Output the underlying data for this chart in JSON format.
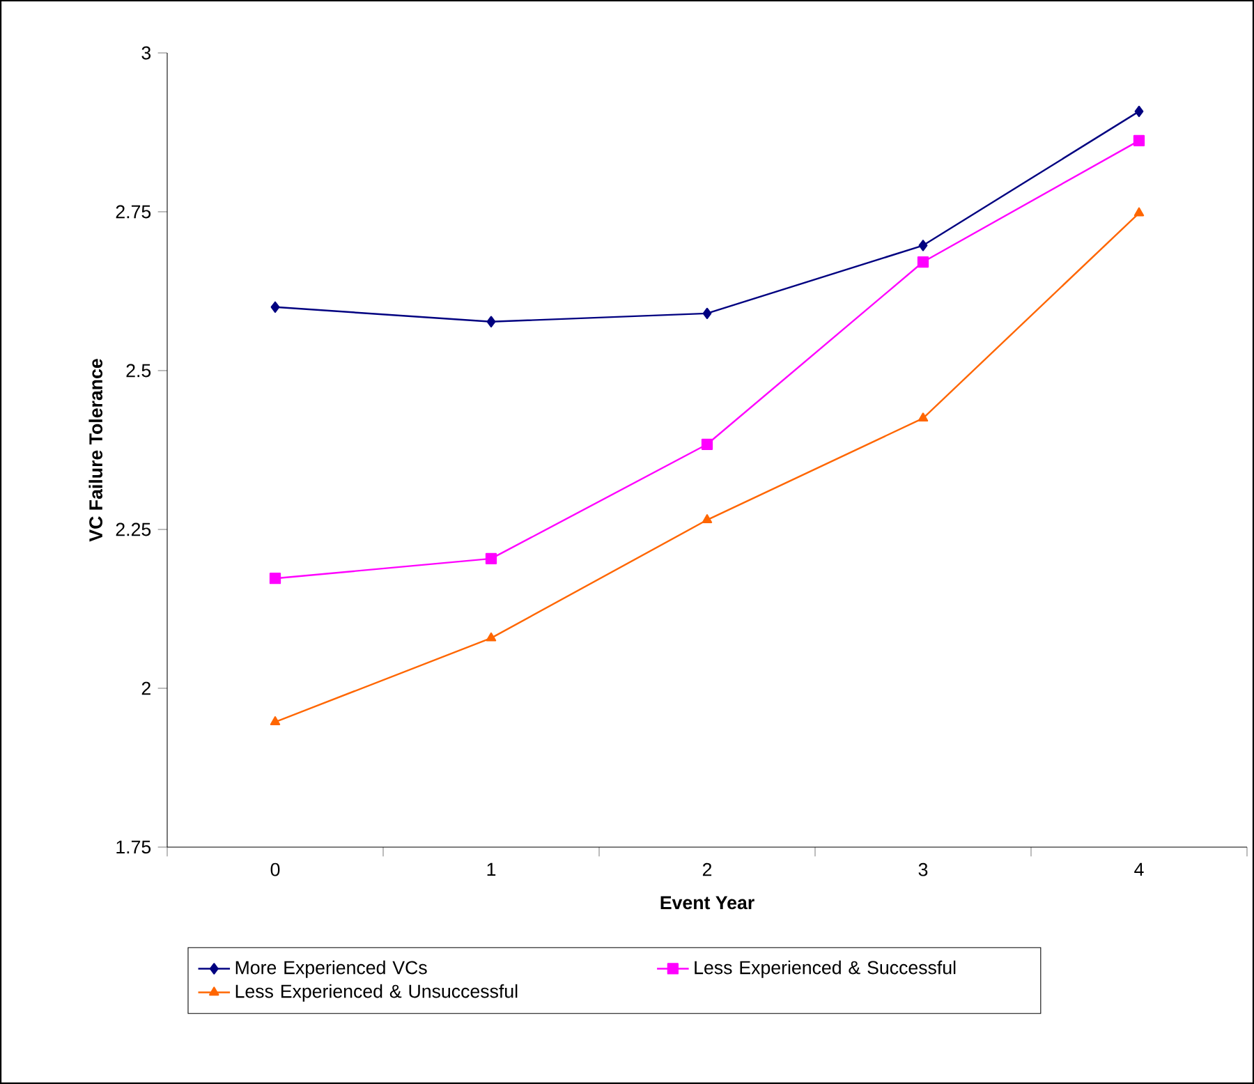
{
  "chart_data": {
    "type": "line",
    "xlabel": "Event Year",
    "ylabel": "VC Failure Tolerance",
    "categories": [
      "0",
      "1",
      "2",
      "3",
      "4"
    ],
    "series": [
      {
        "name": "More Experienced VCs",
        "color": "#000080",
        "marker": "diamond",
        "values": [
          2.6,
          2.577,
          2.59,
          2.697,
          2.908
        ]
      },
      {
        "name": "Less Experienced & Successful",
        "color": "#ff00ff",
        "marker": "square",
        "values": [
          2.173,
          2.204,
          2.384,
          2.671,
          2.862
        ]
      },
      {
        "name": "Less Experienced & Unsuccessful",
        "color": "#ff6600",
        "marker": "triangle",
        "values": [
          1.947,
          2.079,
          2.265,
          2.425,
          2.748
        ]
      }
    ],
    "ylim": [
      1.75,
      3
    ],
    "yticks": [
      1.75,
      2,
      2.25,
      2.5,
      2.75,
      3
    ],
    "grid": false,
    "legend": "bottom"
  }
}
